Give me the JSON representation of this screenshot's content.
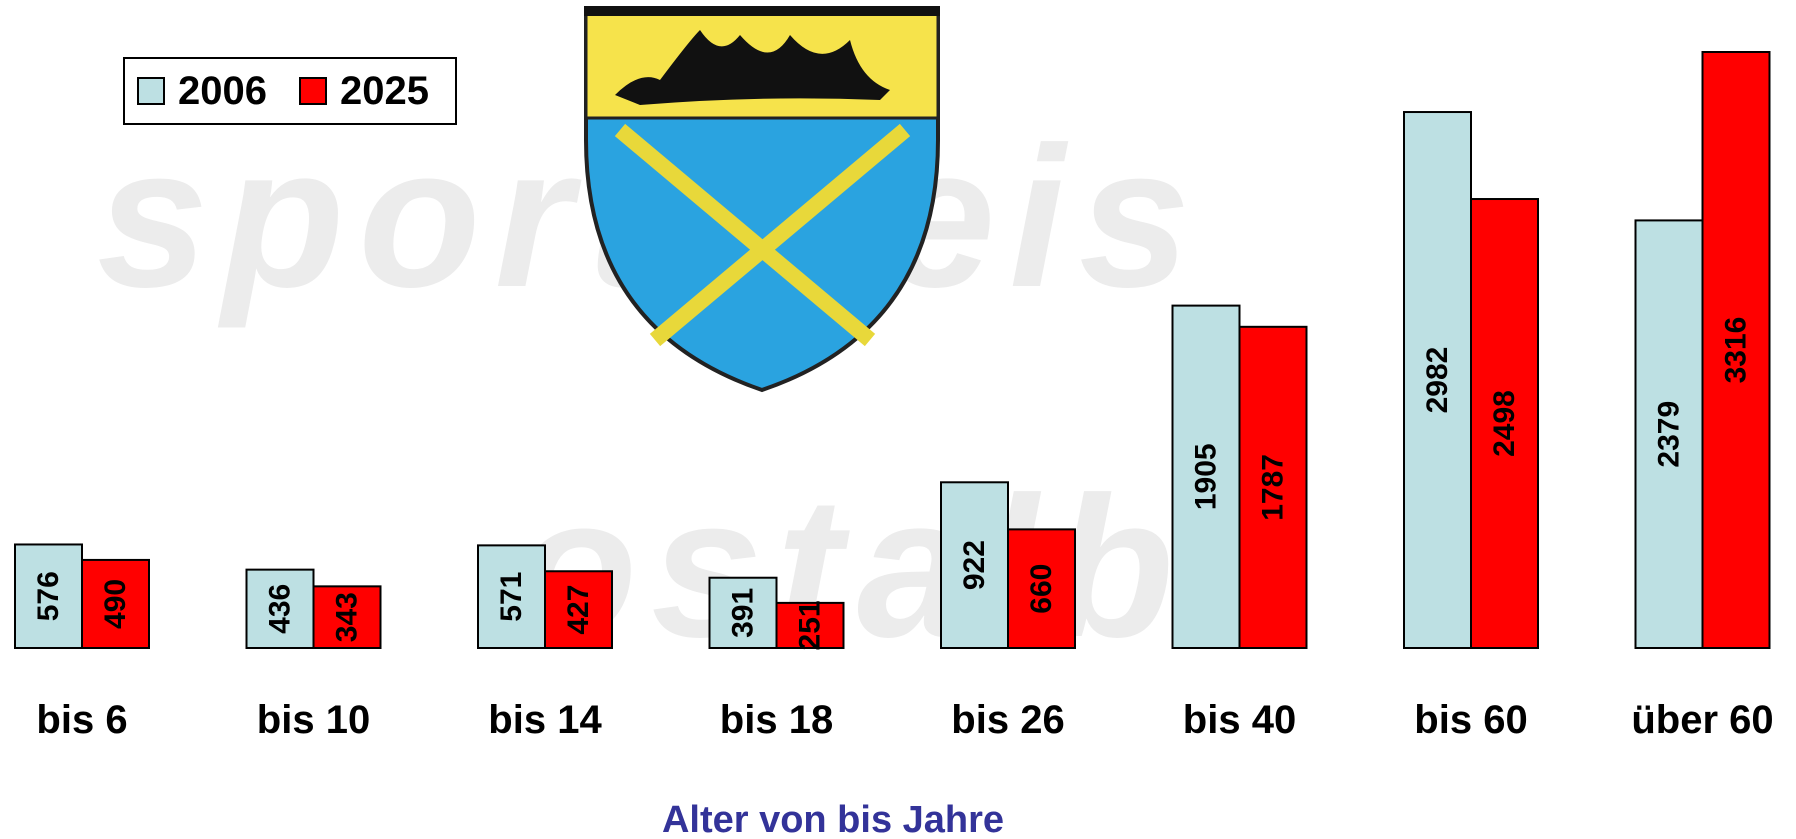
{
  "chart_data": {
    "type": "bar",
    "watermark": [
      "sportkreis",
      "ostalb"
    ],
    "x_label": "Alter von bis Jahre",
    "categories": [
      "bis 6",
      "bis 10",
      "bis 14",
      "bis 18",
      "bis 26",
      "bis 40",
      "bis 60",
      "über 60"
    ],
    "series": [
      {
        "name": "2006",
        "color": "#bde0e3",
        "values": [
          576,
          436,
          571,
          391,
          922,
          1905,
          2982,
          2379
        ]
      },
      {
        "name": "2025",
        "color": "#ff0000",
        "values": [
          490,
          343,
          427,
          251,
          660,
          1787,
          2498,
          3316
        ]
      }
    ],
    "legend": "top-left"
  }
}
